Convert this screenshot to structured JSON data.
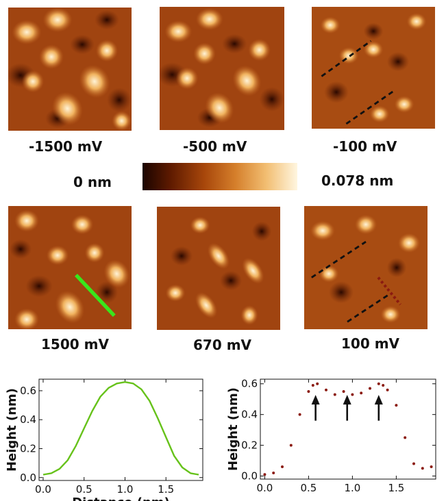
{
  "panels": [
    {
      "id": "p1",
      "label": "-1500 mV"
    },
    {
      "id": "p2",
      "label": "-500 mV"
    },
    {
      "id": "p3",
      "label": "-100 mV"
    },
    {
      "id": "p4",
      "label": "1500 mV"
    },
    {
      "id": "p5",
      "label": "670 mV"
    },
    {
      "id": "p6",
      "label": "100 mV"
    }
  ],
  "colorbar": {
    "min_label": "0 nm",
    "max_label": "0.078 nm"
  },
  "colors": {
    "green_profile": "#66c21a",
    "red_profile": "#8b1a10",
    "dash": "#111111"
  },
  "chart_data": [
    {
      "type": "line",
      "xlabel": "Distance (nm)",
      "ylabel": "Height (nm)",
      "xlim": [
        -0.05,
        1.95
      ],
      "ylim": [
        -0.02,
        0.68
      ],
      "xticks": [
        "0.0",
        "0.5",
        "1.0",
        "1.5"
      ],
      "yticks": [
        "0.0",
        "0.2",
        "0.4",
        "0.6"
      ],
      "x": [
        0.0,
        0.1,
        0.2,
        0.3,
        0.4,
        0.5,
        0.6,
        0.7,
        0.8,
        0.9,
        1.0,
        1.1,
        1.2,
        1.3,
        1.4,
        1.5,
        1.6,
        1.7,
        1.8,
        1.9
      ],
      "y": [
        0.02,
        0.03,
        0.06,
        0.12,
        0.22,
        0.34,
        0.46,
        0.56,
        0.62,
        0.65,
        0.66,
        0.65,
        0.61,
        0.53,
        0.41,
        0.28,
        0.15,
        0.07,
        0.03,
        0.02
      ]
    },
    {
      "type": "scatter",
      "xlabel": "",
      "ylabel": "Height (nm)",
      "xlim": [
        -0.05,
        1.95
      ],
      "ylim": [
        -0.02,
        0.63
      ],
      "xticks": [
        "0.0",
        "0.5",
        "1.0",
        "1.5"
      ],
      "yticks": [
        "0.0",
        "0.2",
        "0.4",
        "0.6"
      ],
      "x": [
        0.0,
        0.1,
        0.2,
        0.3,
        0.4,
        0.5,
        0.55,
        0.6,
        0.7,
        0.8,
        0.9,
        1.0,
        1.1,
        1.2,
        1.3,
        1.35,
        1.4,
        1.5,
        1.6,
        1.7,
        1.8,
        1.9
      ],
      "y": [
        0.01,
        0.02,
        0.06,
        0.2,
        0.4,
        0.55,
        0.59,
        0.6,
        0.56,
        0.53,
        0.55,
        0.53,
        0.54,
        0.57,
        0.6,
        0.59,
        0.56,
        0.46,
        0.25,
        0.08,
        0.05,
        0.06
      ],
      "arrows_x": [
        0.58,
        0.94,
        1.3
      ]
    }
  ]
}
